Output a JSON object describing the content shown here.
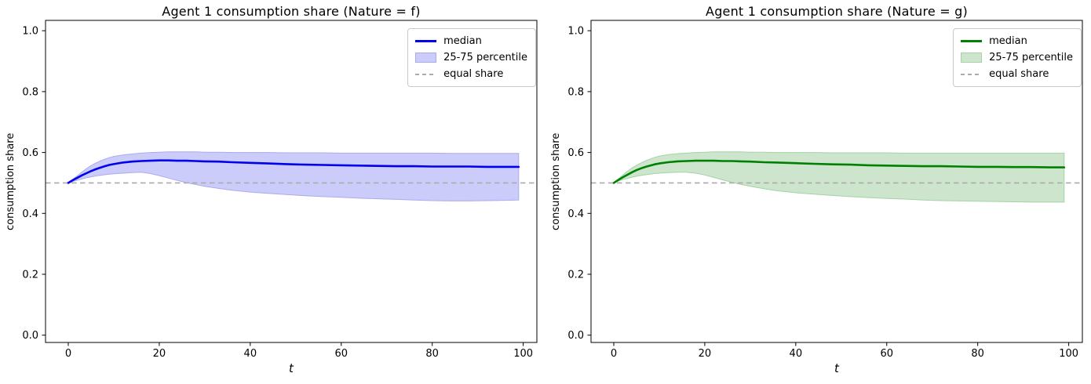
{
  "chart_data": [
    {
      "type": "line",
      "title": "Agent 1 consumption share (Nature = f)",
      "xlabel": "t",
      "ylabel": "consumption share",
      "xlim": [
        -5,
        103
      ],
      "ylim": [
        -0.024,
        1.034
      ],
      "xticks": [
        0,
        20,
        40,
        60,
        80,
        100
      ],
      "yticks": [
        "0.0",
        "0.2",
        "0.4",
        "0.6",
        "0.8",
        "1.0"
      ],
      "grid": false,
      "equal_share_y": 0.5,
      "legend": {
        "position": "upper right",
        "entries": [
          "median",
          "25-75 percentile",
          "equal share"
        ]
      },
      "colors": {
        "line": "#0000ee",
        "band_fill": "#ccccfa",
        "band_edge": "#aaaaf0",
        "equal_share": "#ababab"
      },
      "t": [
        0,
        1,
        2,
        3,
        4,
        5,
        6,
        7,
        8,
        9,
        10,
        12,
        14,
        16,
        18,
        20,
        22,
        24,
        26,
        28,
        30,
        33,
        36,
        40,
        44,
        48,
        52,
        56,
        60,
        64,
        68,
        72,
        76,
        80,
        84,
        88,
        92,
        96,
        99
      ],
      "series": [
        {
          "name": "median",
          "values": [
            0.5,
            0.509,
            0.517,
            0.525,
            0.532,
            0.539,
            0.545,
            0.55,
            0.555,
            0.559,
            0.562,
            0.567,
            0.57,
            0.572,
            0.573,
            0.574,
            0.574,
            0.573,
            0.573,
            0.572,
            0.571,
            0.57,
            0.568,
            0.566,
            0.564,
            0.562,
            0.56,
            0.559,
            0.558,
            0.557,
            0.556,
            0.555,
            0.555,
            0.554,
            0.554,
            0.554,
            0.553,
            0.553,
            0.553
          ]
        },
        {
          "name": "p75",
          "values": [
            0.5,
            0.512,
            0.524,
            0.536,
            0.547,
            0.557,
            0.565,
            0.572,
            0.578,
            0.583,
            0.587,
            0.592,
            0.595,
            0.598,
            0.6,
            0.601,
            0.602,
            0.602,
            0.602,
            0.602,
            0.601,
            0.601,
            0.6,
            0.6,
            0.6,
            0.599,
            0.599,
            0.599,
            0.598,
            0.598,
            0.598,
            0.598,
            0.598,
            0.598,
            0.597,
            0.597,
            0.597,
            0.597,
            0.597
          ]
        },
        {
          "name": "p25",
          "values": [
            0.5,
            0.505,
            0.509,
            0.513,
            0.517,
            0.52,
            0.523,
            0.525,
            0.527,
            0.529,
            0.53,
            0.532,
            0.534,
            0.535,
            0.531,
            0.524,
            0.516,
            0.508,
            0.501,
            0.495,
            0.489,
            0.482,
            0.476,
            0.47,
            0.466,
            0.462,
            0.458,
            0.455,
            0.453,
            0.45,
            0.448,
            0.446,
            0.444,
            0.442,
            0.441,
            0.441,
            0.442,
            0.443,
            0.444
          ]
        }
      ]
    },
    {
      "type": "line",
      "title": "Agent 1 consumption share (Nature = g)",
      "xlabel": "t",
      "ylabel": "consumption share",
      "xlim": [
        -5,
        103
      ],
      "ylim": [
        -0.024,
        1.034
      ],
      "xticks": [
        0,
        20,
        40,
        60,
        80,
        100
      ],
      "yticks": [
        "0.0",
        "0.2",
        "0.4",
        "0.6",
        "0.8",
        "1.0"
      ],
      "grid": false,
      "equal_share_y": 0.5,
      "legend": {
        "position": "upper right",
        "entries": [
          "median",
          "25-75 percentile",
          "equal share"
        ]
      },
      "colors": {
        "line": "#008000",
        "band_fill": "#cce5cc",
        "band_edge": "#a5d3a5",
        "equal_share": "#ababab"
      },
      "t": [
        0,
        1,
        2,
        3,
        4,
        5,
        6,
        7,
        8,
        9,
        10,
        12,
        14,
        16,
        18,
        20,
        22,
        24,
        26,
        28,
        30,
        33,
        36,
        40,
        44,
        48,
        52,
        56,
        60,
        64,
        68,
        72,
        76,
        80,
        84,
        88,
        92,
        96,
        99
      ],
      "series": [
        {
          "name": "median",
          "values": [
            0.5,
            0.51,
            0.519,
            0.527,
            0.535,
            0.542,
            0.548,
            0.553,
            0.557,
            0.561,
            0.564,
            0.568,
            0.571,
            0.572,
            0.573,
            0.573,
            0.573,
            0.572,
            0.572,
            0.571,
            0.57,
            0.568,
            0.567,
            0.565,
            0.563,
            0.561,
            0.56,
            0.558,
            0.557,
            0.556,
            0.555,
            0.555,
            0.554,
            0.553,
            0.553,
            0.552,
            0.552,
            0.551,
            0.551
          ]
        },
        {
          "name": "p75",
          "values": [
            0.5,
            0.513,
            0.526,
            0.538,
            0.549,
            0.558,
            0.566,
            0.573,
            0.579,
            0.584,
            0.588,
            0.593,
            0.596,
            0.598,
            0.6,
            0.601,
            0.602,
            0.602,
            0.602,
            0.602,
            0.601,
            0.601,
            0.6,
            0.6,
            0.6,
            0.599,
            0.599,
            0.599,
            0.599,
            0.598,
            0.598,
            0.598,
            0.598,
            0.598,
            0.598,
            0.598,
            0.598,
            0.598,
            0.598
          ]
        },
        {
          "name": "p25",
          "values": [
            0.5,
            0.506,
            0.511,
            0.515,
            0.519,
            0.522,
            0.525,
            0.527,
            0.529,
            0.531,
            0.532,
            0.534,
            0.535,
            0.535,
            0.532,
            0.526,
            0.518,
            0.51,
            0.502,
            0.495,
            0.489,
            0.481,
            0.474,
            0.468,
            0.463,
            0.459,
            0.455,
            0.452,
            0.449,
            0.447,
            0.444,
            0.442,
            0.441,
            0.44,
            0.439,
            0.438,
            0.437,
            0.437,
            0.437
          ]
        }
      ]
    }
  ]
}
